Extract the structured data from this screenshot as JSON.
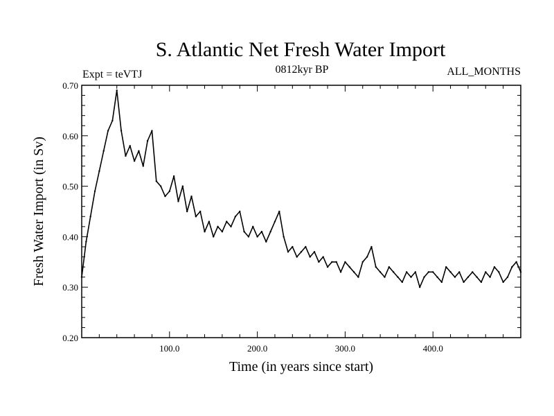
{
  "chart_data": {
    "type": "line",
    "title": "S. Atlantic Net Fresh Water Import",
    "subtitle_left": "Expt = teVTJ",
    "subtitle_center": "0812kyr BP",
    "subtitle_right": "ALL_MONTHS",
    "xlabel": "Time (in years since start)",
    "ylabel": "Fresh Water Import (in Sv)",
    "xlim": [
      0,
      500
    ],
    "ylim": [
      0.2,
      0.7
    ],
    "xticks": [
      100,
      200,
      300,
      400
    ],
    "xtick_labels": [
      "100.0",
      "200.0",
      "300.0",
      "400.0"
    ],
    "yticks": [
      0.2,
      0.3,
      0.4,
      0.5,
      0.6,
      0.7
    ],
    "ytick_labels": [
      "0.20",
      "0.30",
      "0.40",
      "0.50",
      "0.60",
      "0.70"
    ],
    "grid": false,
    "series": [
      {
        "name": "Net Fresh Water Import",
        "color": "#000000",
        "x": [
          0,
          5,
          10,
          15,
          20,
          25,
          30,
          35,
          40,
          45,
          50,
          55,
          60,
          65,
          70,
          75,
          80,
          85,
          90,
          95,
          100,
          105,
          110,
          115,
          120,
          125,
          130,
          135,
          140,
          145,
          150,
          155,
          160,
          165,
          170,
          175,
          180,
          185,
          190,
          195,
          200,
          205,
          210,
          215,
          220,
          225,
          230,
          235,
          240,
          245,
          250,
          255,
          260,
          265,
          270,
          275,
          280,
          285,
          290,
          295,
          300,
          305,
          310,
          315,
          320,
          325,
          330,
          335,
          340,
          345,
          350,
          355,
          360,
          365,
          370,
          375,
          380,
          385,
          390,
          395,
          400,
          405,
          410,
          415,
          420,
          425,
          430,
          435,
          440,
          445,
          450,
          455,
          460,
          465,
          470,
          475,
          480,
          485,
          490,
          495,
          500
        ],
        "values": [
          0.32,
          0.39,
          0.44,
          0.49,
          0.53,
          0.57,
          0.61,
          0.63,
          0.69,
          0.61,
          0.56,
          0.58,
          0.55,
          0.57,
          0.54,
          0.59,
          0.61,
          0.51,
          0.5,
          0.48,
          0.49,
          0.52,
          0.47,
          0.5,
          0.45,
          0.48,
          0.44,
          0.45,
          0.41,
          0.43,
          0.4,
          0.42,
          0.41,
          0.43,
          0.42,
          0.44,
          0.45,
          0.41,
          0.4,
          0.42,
          0.4,
          0.41,
          0.39,
          0.41,
          0.43,
          0.45,
          0.4,
          0.37,
          0.38,
          0.36,
          0.37,
          0.38,
          0.36,
          0.37,
          0.35,
          0.36,
          0.34,
          0.35,
          0.35,
          0.33,
          0.35,
          0.34,
          0.33,
          0.32,
          0.35,
          0.36,
          0.38,
          0.34,
          0.33,
          0.32,
          0.34,
          0.33,
          0.32,
          0.31,
          0.33,
          0.32,
          0.33,
          0.3,
          0.32,
          0.33,
          0.33,
          0.32,
          0.31,
          0.34,
          0.33,
          0.32,
          0.33,
          0.31,
          0.32,
          0.33,
          0.32,
          0.31,
          0.33,
          0.32,
          0.34,
          0.33,
          0.31,
          0.32,
          0.34,
          0.35,
          0.33
        ]
      }
    ]
  }
}
